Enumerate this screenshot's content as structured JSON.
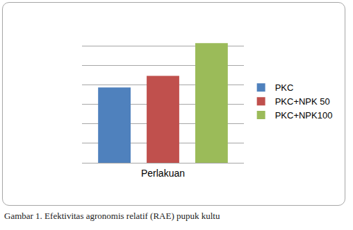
{
  "chart_data": {
    "type": "bar",
    "categories": [
      null
    ],
    "series": [
      {
        "name": "PKC",
        "color": "#4f81bd",
        "values": [
          3.86
        ]
      },
      {
        "name": "PKC+NPK 50",
        "color": "#c0504d",
        "values": [
          4.46
        ]
      },
      {
        "name": "PKC+NPK100",
        "color": "#9bbb59",
        "values": [
          6.14
        ]
      }
    ],
    "x_label": "Perlakuan",
    "annotations": [
      "Gambar 1. Efektivitas agronomis relatif (RAE) pupuk kultu"
    ],
    "ylim": [
      0,
      7
    ],
    "yticks": [
      0,
      1,
      2,
      3,
      4,
      5,
      6,
      7
    ],
    "grid": true,
    "legend": "right",
    "tick_labels": false
  }
}
